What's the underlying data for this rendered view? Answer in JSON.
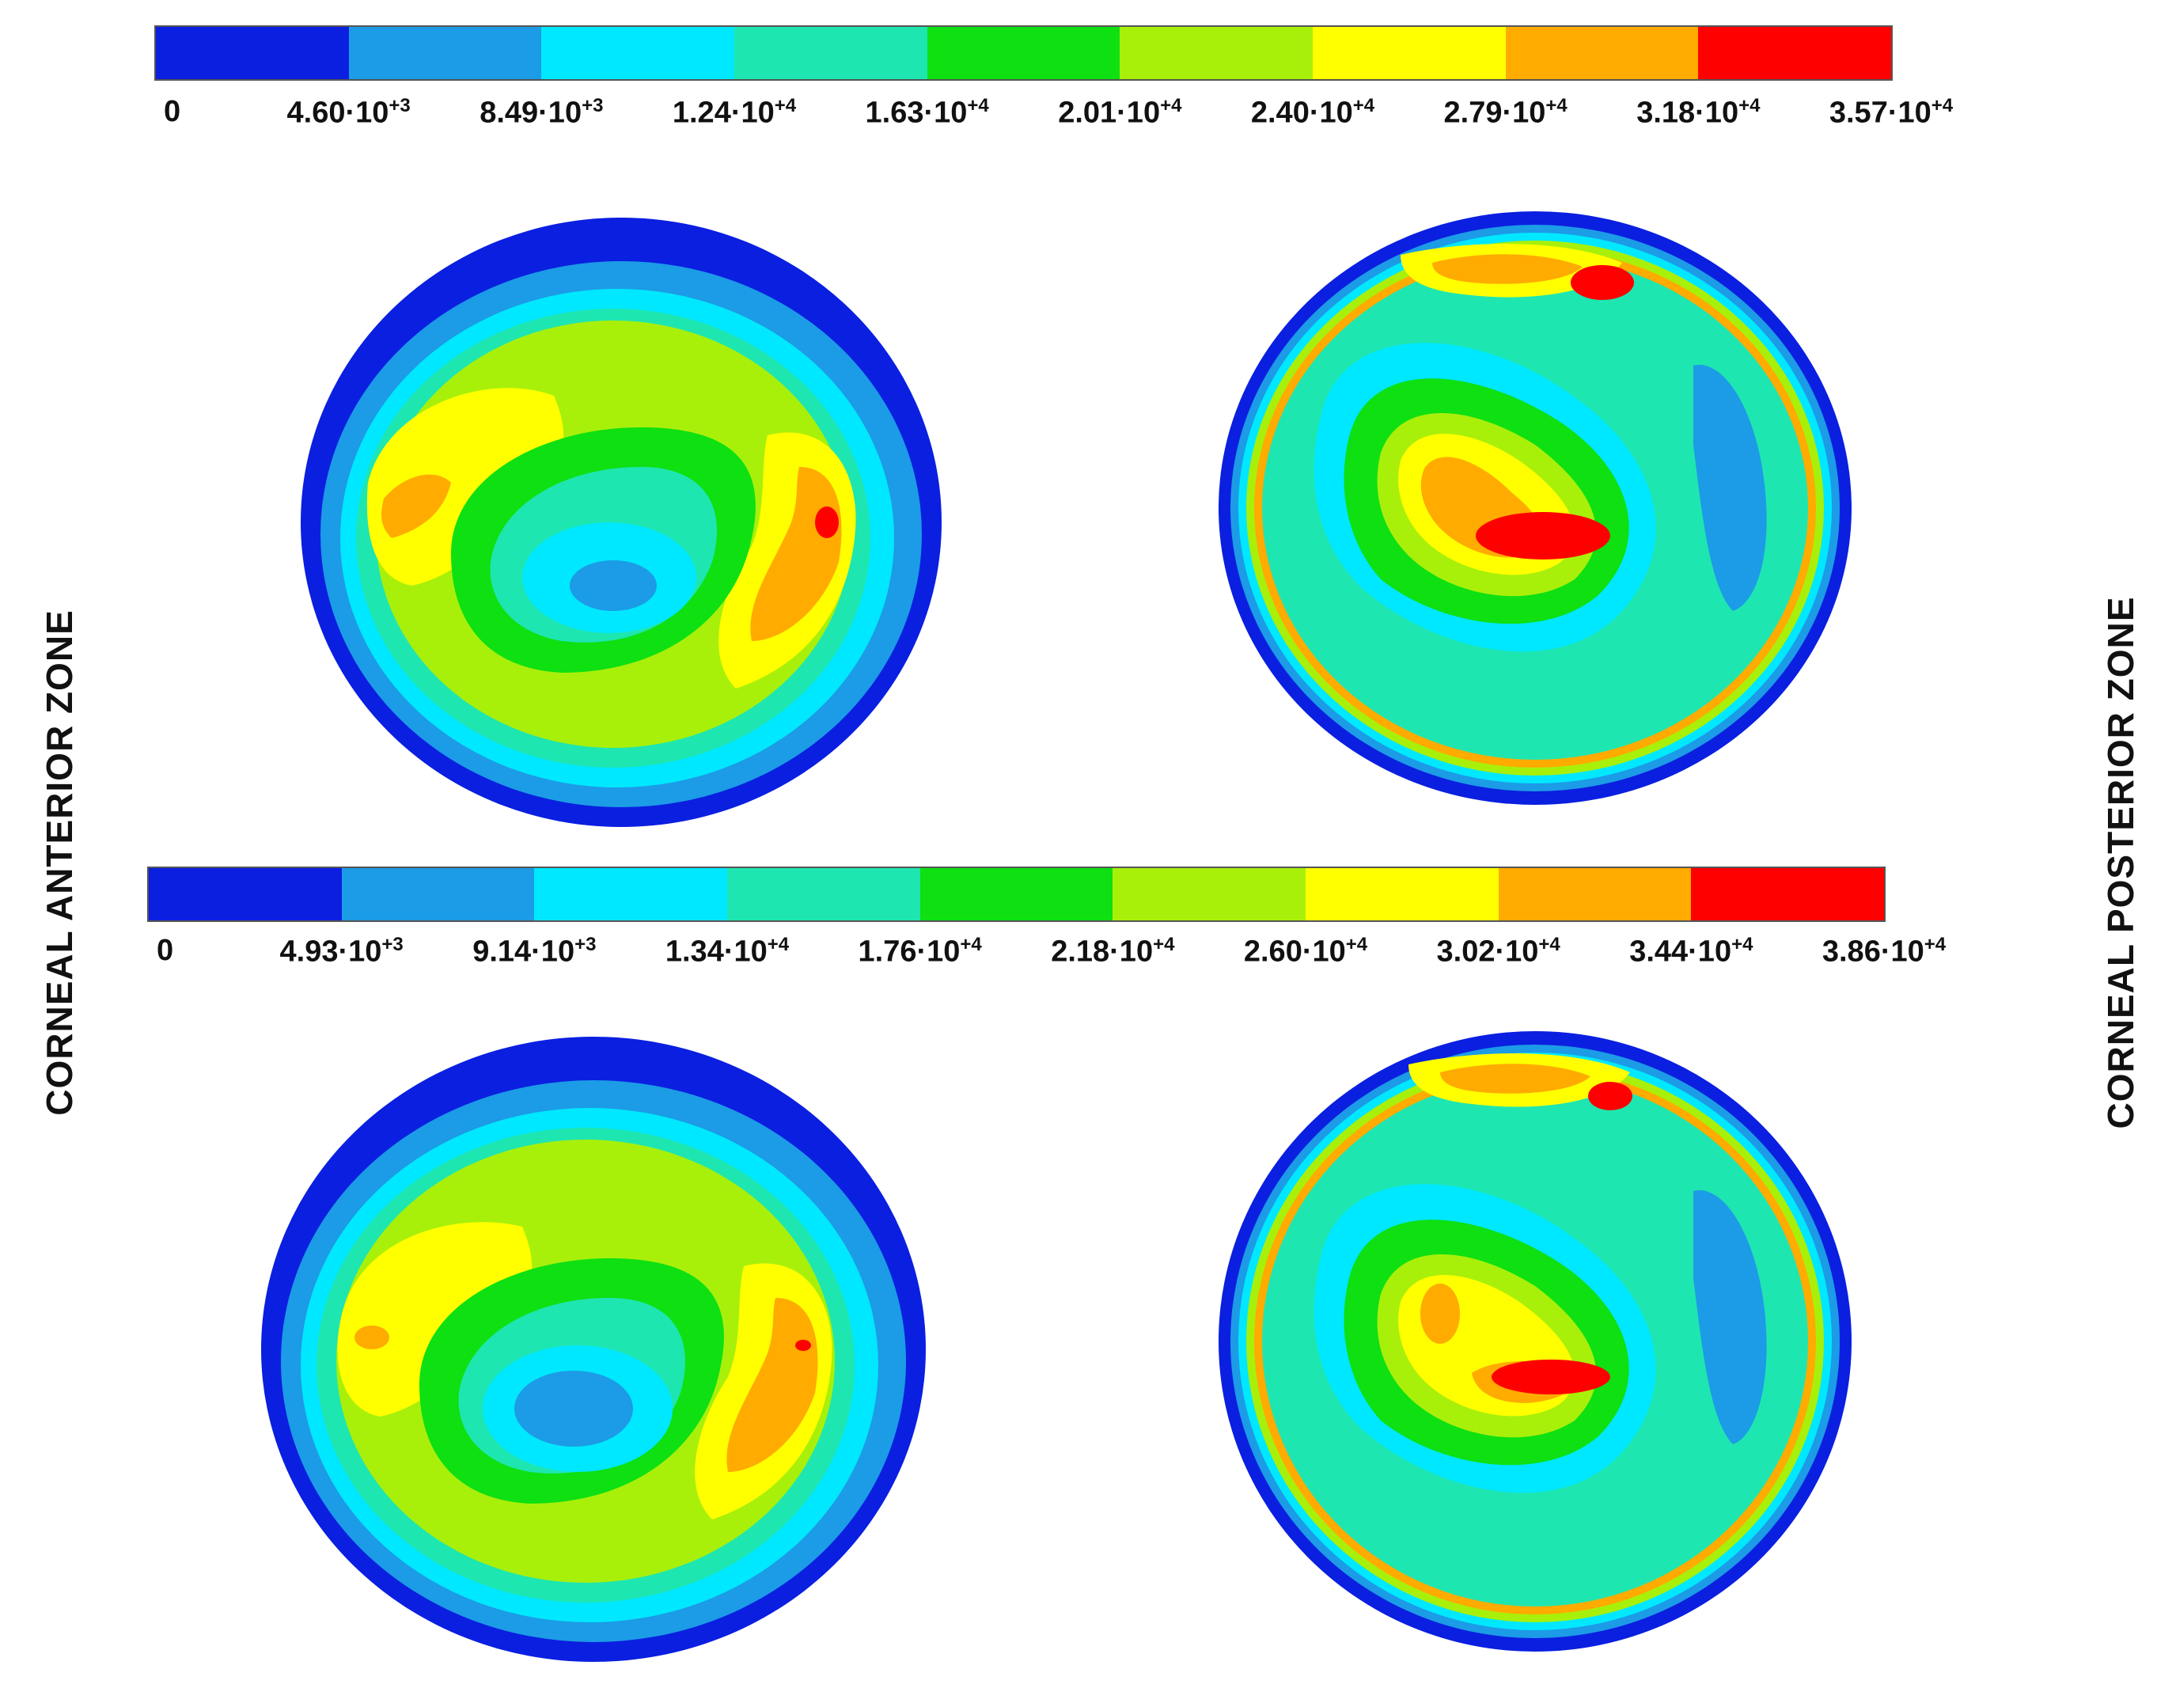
{
  "figure": {
    "left_title": "CORNEAL ANTERIOR ZONE",
    "right_title": "CORNEAL POSTERIOR  ZONE"
  },
  "colorbars": [
    {
      "id": "top",
      "colors": [
        "#0a1fe0",
        "#1c9be6",
        "#00e8ff",
        "#1ee6b0",
        "#0ee012",
        "#a8f00a",
        "#ffff00",
        "#ffab00",
        "#ff0000"
      ],
      "labels": [
        {
          "mant": "0",
          "exp": ""
        },
        {
          "mant": "4.60·10",
          "exp": "+3"
        },
        {
          "mant": "8.49·10",
          "exp": "+3"
        },
        {
          "mant": "1.24·10",
          "exp": "+4"
        },
        {
          "mant": "1.63·10",
          "exp": "+4"
        },
        {
          "mant": "2.01·10",
          "exp": "+4"
        },
        {
          "mant": "2.40·10",
          "exp": "+4"
        },
        {
          "mant": "2.79·10",
          "exp": "+4"
        },
        {
          "mant": "3.18·10",
          "exp": "+4"
        },
        {
          "mant": "3.57·10",
          "exp": "+4"
        }
      ]
    },
    {
      "id": "bottom",
      "colors": [
        "#0a1fe0",
        "#1c9be6",
        "#00e8ff",
        "#1ee6b0",
        "#0ee012",
        "#a8f00a",
        "#ffff00",
        "#ffab00",
        "#ff0000"
      ],
      "labels": [
        {
          "mant": "0",
          "exp": ""
        },
        {
          "mant": "4.93·10",
          "exp": "+3"
        },
        {
          "mant": "9.14·10",
          "exp": "+3"
        },
        {
          "mant": "1.34·10",
          "exp": "+4"
        },
        {
          "mant": "1.76·10",
          "exp": "+4"
        },
        {
          "mant": "2.18·10",
          "exp": "+4"
        },
        {
          "mant": "2.60·10",
          "exp": "+4"
        },
        {
          "mant": "3.02·10",
          "exp": "+4"
        },
        {
          "mant": "3.44·10",
          "exp": "+4"
        },
        {
          "mant": "3.86·10",
          "exp": "+4"
        }
      ]
    }
  ]
}
